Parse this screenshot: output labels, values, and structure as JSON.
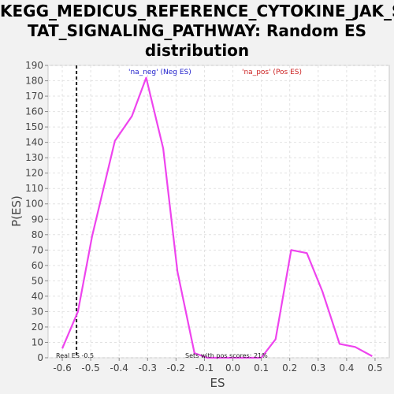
{
  "chart_data": {
    "type": "line",
    "title_lines": [
      "KEGG_MEDICUS_REFERENCE_CYTOKINE_JAK_S",
      "TAT_SIGNALING_PATHWAY: Random ES",
      "distribution"
    ],
    "xlabel": "ES",
    "ylabel": "P(ES)",
    "xlim": [
      -0.65,
      0.55
    ],
    "ylim": [
      0,
      190
    ],
    "x_ticks": [
      -0.6,
      -0.5,
      -0.4,
      -0.3,
      -0.2,
      -0.1,
      0.0,
      0.1,
      0.2,
      0.3,
      0.4,
      0.5
    ],
    "x_tick_labels": [
      "-0.6",
      "-0.5",
      "-0.4",
      "-0.3",
      "-0.2",
      "-0.1",
      "0.0",
      "0.1",
      "0.2",
      "0.3",
      "0.4",
      "0.5"
    ],
    "y_ticks": [
      0,
      10,
      20,
      30,
      40,
      50,
      60,
      70,
      80,
      90,
      100,
      110,
      120,
      130,
      140,
      150,
      160,
      170,
      180,
      190
    ],
    "grid": true,
    "series": [
      {
        "color": "#ee44ee",
        "points": [
          [
            -0.6,
            6
          ],
          [
            -0.545,
            30
          ],
          [
            -0.495,
            79
          ],
          [
            -0.415,
            141
          ],
          [
            -0.355,
            157
          ],
          [
            -0.305,
            182
          ],
          [
            -0.245,
            136
          ],
          [
            -0.195,
            56
          ],
          [
            -0.135,
            3
          ],
          [
            -0.09,
            0
          ],
          [
            -0.05,
            0
          ],
          [
            0.0,
            0
          ],
          [
            0.05,
            0
          ],
          [
            0.1,
            0
          ],
          [
            0.15,
            12
          ],
          [
            0.205,
            70
          ],
          [
            0.26,
            68
          ],
          [
            0.315,
            43
          ],
          [
            0.375,
            9
          ],
          [
            0.43,
            7
          ],
          [
            0.49,
            1
          ]
        ]
      }
    ],
    "vline": {
      "x": -0.55,
      "label": "Real ES -0.5"
    },
    "annotations": {
      "pos_scores": "Sets with pos scores: 21%"
    },
    "legend": [
      {
        "text": "'na_neg' (Neg ES)",
        "color": "#2222cc"
      },
      {
        "text": "'na_pos' (Pos ES)",
        "color": "#cc2222"
      }
    ]
  }
}
